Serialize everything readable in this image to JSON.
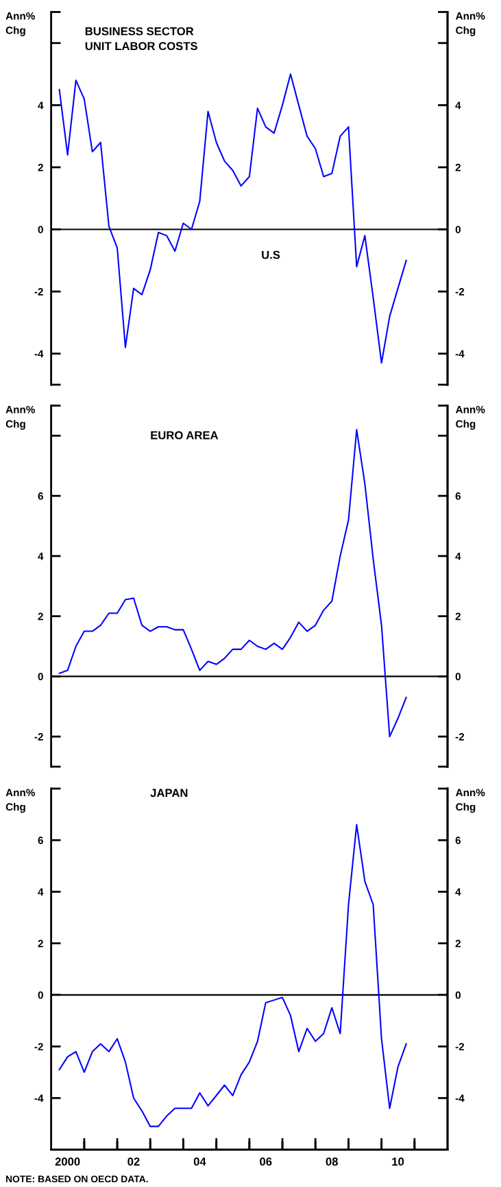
{
  "chart_data": [
    {
      "type": "line",
      "title": "BUSINESS SECTOR\nUNIT LABOR COSTS",
      "subtitle": "U.S",
      "ylabel": "Ann%\nChg",
      "y2label": "Ann%\nChg",
      "tick_labels": "y",
      "grid": false,
      "x": [
        "2000-04",
        "2000-07",
        "2000-10",
        "2001-01",
        "2001-04",
        "2001-07",
        "2001-10",
        "2002-01",
        "2002-04",
        "2002-07",
        "2002-10",
        "2003-01",
        "2003-04",
        "2003-07",
        "2003-10",
        "2004-01",
        "2004-04",
        "2004-07",
        "2004-10",
        "2005-01",
        "2005-04",
        "2005-07",
        "2005-10",
        "2006-01",
        "2006-04",
        "2006-07",
        "2006-10",
        "2007-01",
        "2007-04",
        "2007-07",
        "2007-10",
        "2008-01",
        "2008-04",
        "2008-07",
        "2008-10",
        "2009-01",
        "2009-04",
        "2009-07",
        "2009-10",
        "2010-01",
        "2010-04",
        "2010-07",
        "2010-10"
      ],
      "series": [
        {
          "color": "#0000ff",
          "values": [
            4.5,
            2.4,
            4.8,
            4.2,
            2.5,
            2.8,
            0.1,
            -0.6,
            -3.8,
            -1.9,
            -2.1,
            -1.3,
            -0.1,
            -0.2,
            -0.7,
            0.2,
            0.0,
            0.9,
            3.8,
            2.8,
            2.2,
            1.9,
            1.4,
            1.7,
            3.9,
            3.3,
            3.1,
            4.0,
            5.0,
            4.0,
            3.0,
            2.6,
            1.7,
            1.8,
            3.0,
            3.3,
            -1.2,
            -0.2,
            -2.2,
            -4.3,
            -2.8,
            -1.9,
            -1.0
          ]
        }
      ],
      "xlim": [
        "2000",
        "2012"
      ],
      "ylim": [
        -5,
        7
      ],
      "yticks": [
        {
          "value": -5,
          "label": null
        },
        -4,
        -2,
        0,
        2,
        4,
        {
          "value": 6,
          "label": null
        },
        {
          "value": 7,
          "label": null
        }
      ],
      "y2lim": [
        -5,
        7
      ],
      "y2ticks": [
        {
          "value": -5,
          "label": null
        },
        -4,
        -2,
        0,
        2,
        4,
        {
          "value": 6,
          "label": null
        },
        {
          "value": 7,
          "label": null
        }
      ],
      "ref_lines": [
        {
          "axis": "y",
          "value": 0,
          "color": "#000000"
        }
      ]
    },
    {
      "type": "line",
      "subtitle": "EURO AREA",
      "ylabel": "Ann%\nChg",
      "y2label": "Ann%\nChg",
      "tick_labels": "y",
      "grid": false,
      "x": [
        "2000-04",
        "2000-07",
        "2000-10",
        "2001-01",
        "2001-04",
        "2001-07",
        "2001-10",
        "2002-01",
        "2002-04",
        "2002-07",
        "2002-10",
        "2003-01",
        "2003-04",
        "2003-07",
        "2003-10",
        "2004-01",
        "2004-04",
        "2004-07",
        "2004-10",
        "2005-01",
        "2005-04",
        "2005-07",
        "2005-10",
        "2006-01",
        "2006-04",
        "2006-07",
        "2006-10",
        "2007-01",
        "2007-04",
        "2007-07",
        "2007-10",
        "2008-01",
        "2008-04",
        "2008-07",
        "2008-10",
        "2009-01",
        "2009-04",
        "2009-07",
        "2009-10",
        "2010-01",
        "2010-04",
        "2010-07",
        "2010-10"
      ],
      "series": [
        {
          "color": "#0000ff",
          "values": [
            0.1,
            0.2,
            1.0,
            1.5,
            1.5,
            1.7,
            2.1,
            2.1,
            2.55,
            2.6,
            1.7,
            1.5,
            1.65,
            1.65,
            1.55,
            1.55,
            0.9,
            0.2,
            0.5,
            0.4,
            0.6,
            0.9,
            0.9,
            1.2,
            1.0,
            0.9,
            1.1,
            0.9,
            1.3,
            1.8,
            1.5,
            1.7,
            2.2,
            2.5,
            4.0,
            5.2,
            8.2,
            6.4,
            3.9,
            1.7,
            -2.0,
            -1.4,
            -0.7
          ]
        }
      ],
      "xlim": [
        "2000",
        "2012"
      ],
      "ylim": [
        -3,
        9
      ],
      "yticks": [
        {
          "value": -3,
          "label": null
        },
        -2,
        0,
        2,
        4,
        6,
        {
          "value": 8,
          "label": null
        },
        {
          "value": 9,
          "label": null
        }
      ],
      "y2lim": [
        -3,
        9
      ],
      "y2ticks": [
        {
          "value": -3,
          "label": null
        },
        -2,
        0,
        2,
        4,
        6,
        {
          "value": 8,
          "label": null
        },
        {
          "value": 9,
          "label": null
        }
      ],
      "ref_lines": [
        {
          "axis": "y",
          "value": 0,
          "color": "#000000"
        }
      ]
    },
    {
      "type": "line",
      "subtitle": "JAPAN",
      "ylabel": "Ann%\nChg",
      "y2label": "Ann%\nChg",
      "grid": false,
      "annotations": [
        "NOTE: BASED ON OECD DATA."
      ],
      "x": [
        "2000-04",
        "2000-07",
        "2000-10",
        "2001-01",
        "2001-04",
        "2001-07",
        "2001-10",
        "2002-01",
        "2002-04",
        "2002-07",
        "2002-10",
        "2003-01",
        "2003-04",
        "2003-07",
        "2003-10",
        "2004-01",
        "2004-04",
        "2004-07",
        "2004-10",
        "2005-01",
        "2005-04",
        "2005-07",
        "2005-10",
        "2006-01",
        "2006-04",
        "2006-07",
        "2006-10",
        "2007-01",
        "2007-04",
        "2007-07",
        "2007-10",
        "2008-01",
        "2008-04",
        "2008-07",
        "2008-10",
        "2009-01",
        "2009-04",
        "2009-07",
        "2009-10",
        "2010-01",
        "2010-04",
        "2010-07",
        "2010-10"
      ],
      "series": [
        {
          "color": "#0000ff",
          "values": [
            -2.9,
            -2.4,
            -2.2,
            -3.0,
            -2.2,
            -1.9,
            -2.2,
            -1.7,
            -2.6,
            -4.0,
            -4.5,
            -5.1,
            -5.1,
            -4.7,
            -4.4,
            -4.4,
            -4.4,
            -3.8,
            -4.3,
            -3.9,
            -3.5,
            -3.9,
            -3.1,
            -2.6,
            -1.8,
            -0.3,
            -0.2,
            -0.1,
            -0.8,
            -2.2,
            -1.3,
            -1.8,
            -1.5,
            -0.5,
            -1.5,
            3.5,
            6.6,
            4.4,
            3.5,
            -1.7,
            -4.4,
            -2.8,
            -1.9
          ]
        }
      ],
      "xlim": [
        "2000",
        "2012"
      ],
      "xticks": [
        {
          "value": "2000-07",
          "label": "2000"
        },
        {
          "value": "2001",
          "label": null
        },
        {
          "value": "2002",
          "label": null
        },
        {
          "value": "2002-07",
          "label": "02"
        },
        {
          "value": "2003",
          "label": null
        },
        {
          "value": "2004",
          "label": null
        },
        {
          "value": "2004-07",
          "label": "04"
        },
        {
          "value": "2005",
          "label": null
        },
        {
          "value": "2006",
          "label": null
        },
        {
          "value": "2006-07",
          "label": "06"
        },
        {
          "value": "2007",
          "label": null
        },
        {
          "value": "2008",
          "label": null
        },
        {
          "value": "2008-07",
          "label": "08"
        },
        {
          "value": "2009",
          "label": null
        },
        {
          "value": "2010",
          "label": null
        },
        {
          "value": "2010-07",
          "label": "10"
        },
        {
          "value": "2011",
          "label": null
        }
      ],
      "ylim": [
        -6,
        8
      ],
      "yticks": [
        {
          "value": -6,
          "label": null
        },
        -4,
        -2,
        0,
        2,
        4,
        6,
        {
          "value": 8,
          "label": null
        }
      ],
      "y2lim": [
        -6,
        8
      ],
      "y2ticks": [
        {
          "value": -6,
          "label": null
        },
        -4,
        -2,
        0,
        2,
        4,
        6,
        {
          "value": 8,
          "label": null
        }
      ],
      "ref_lines": [
        {
          "axis": "y",
          "value": 0,
          "color": "#000000"
        }
      ]
    }
  ]
}
